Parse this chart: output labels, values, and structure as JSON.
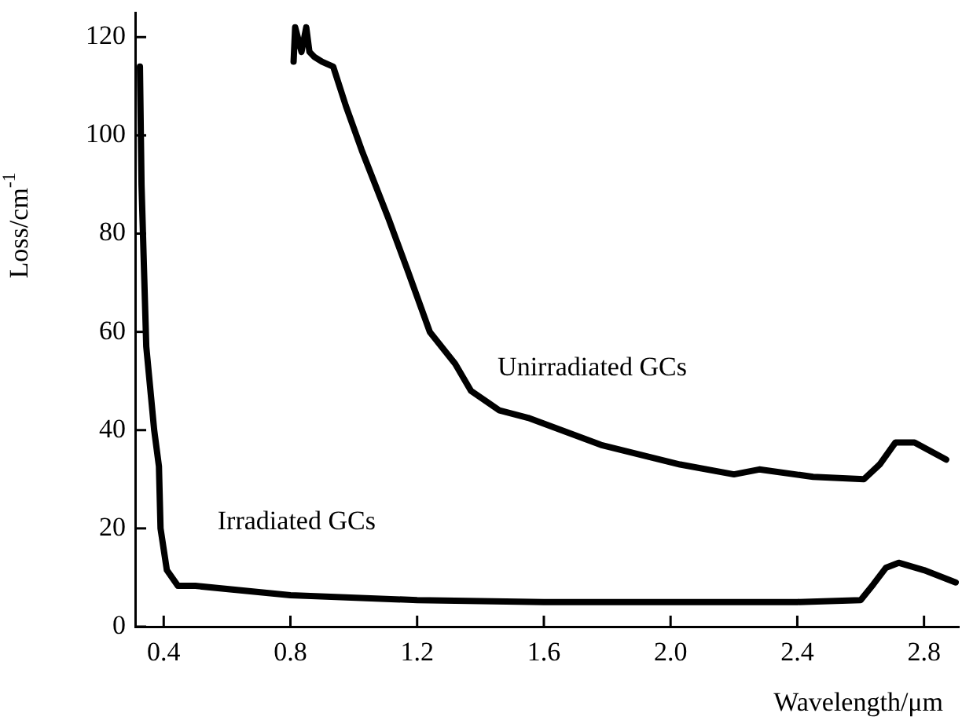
{
  "chart_data": {
    "type": "line",
    "xlabel": "Wavelength/μm",
    "ylabel": "Loss/cm$^{-1}$",
    "xlim": [
      0.31,
      2.91
    ],
    "ylim": [
      0,
      125
    ],
    "xticks": [
      0.4,
      0.8,
      1.2,
      1.6,
      {
        "value": 2,
        "label": "2.0"
      },
      2.4,
      2.8
    ],
    "yticks": [
      0,
      20,
      40,
      60,
      80,
      100,
      120
    ],
    "grid": false,
    "legend": false,
    "marker": "none",
    "line_style": "solid",
    "series": [
      {
        "color": "#000000",
        "x": [
          0.81,
          0.815,
          0.835,
          0.85,
          0.86,
          0.875,
          0.9,
          0.935,
          0.975,
          1.025,
          1.11,
          1.17,
          1.24,
          1.32,
          1.37,
          1.46,
          1.55,
          1.78,
          2.03,
          2.2,
          2.28,
          2.45,
          2.61,
          2.66,
          2.71,
          2.77,
          2.87
        ],
        "values": [
          115,
          122,
          117,
          122,
          117,
          116,
          115,
          114,
          106,
          97,
          83,
          72.5,
          60,
          53.5,
          48,
          44,
          42.5,
          37,
          33,
          31,
          32,
          30.5,
          30,
          33,
          37.5,
          37.5,
          34
        ]
      },
      {
        "color": "#000000",
        "x": [
          0.325,
          0.33,
          0.345,
          0.37,
          0.385,
          0.39,
          0.41,
          0.445,
          0.5,
          0.8,
          1.2,
          1.6,
          2.0,
          2.4,
          2.6,
          2.64,
          2.68,
          2.72,
          2.8,
          2.9
        ],
        "values": [
          114,
          90,
          57,
          40,
          32.6,
          20,
          11.5,
          8.3,
          8.3,
          6.4,
          5.4,
          5,
          5,
          5,
          5.4,
          8.6,
          12,
          13,
          11.5,
          9
        ]
      }
    ],
    "annotations": [
      "Unirradiated GCs",
      "Irradiated GCs"
    ]
  }
}
